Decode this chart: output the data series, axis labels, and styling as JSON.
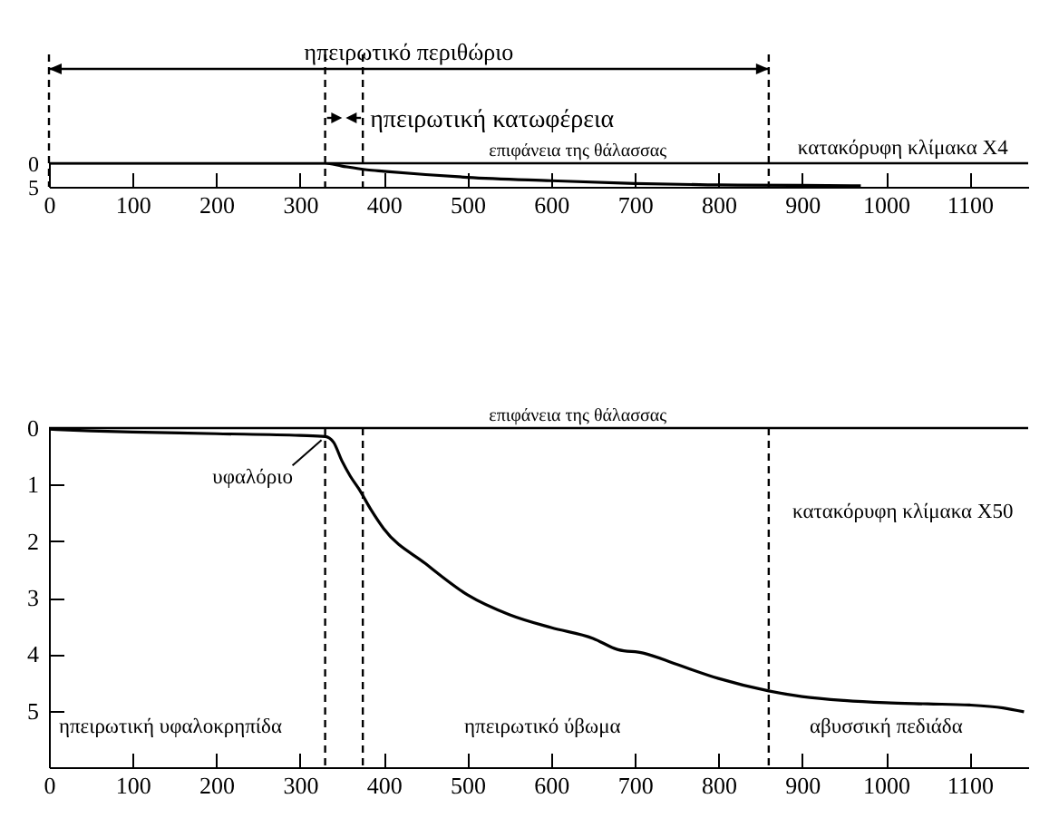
{
  "chart_data": [
    {
      "type": "line",
      "x": [
        0,
        100,
        200,
        300,
        330,
        350,
        380,
        400,
        450,
        500,
        600,
        700,
        800,
        900,
        970
      ],
      "values": [
        0,
        0,
        0,
        0,
        0,
        0.6,
        1.4,
        1.7,
        2.4,
        3.0,
        3.7,
        4.3,
        4.6,
        4.7,
        4.8
      ],
      "color": "#000000",
      "xlim": [
        0,
        1170
      ],
      "xticks": [
        0,
        100,
        200,
        300,
        400,
        500,
        600,
        700,
        800,
        900,
        1000,
        1100
      ],
      "ylim": [
        5,
        0
      ],
      "yticks": [
        0,
        5
      ],
      "ref_lines": [
        {
          "axis": "y",
          "value": 0,
          "label": "επιφάνεια της θάλασσας"
        },
        {
          "axis": "x",
          "value": 0,
          "line_style": "dashed"
        },
        {
          "axis": "x",
          "value": 330,
          "line_style": "dashed"
        },
        {
          "axis": "x",
          "value": 375,
          "line_style": "dashed"
        },
        {
          "axis": "x",
          "value": 860,
          "line_style": "dashed"
        }
      ],
      "annotations": [
        "ηπειρωτικό περιθώριο",
        "ηπειρωτική κατωφέρεια",
        "κατακόρυφη κλίμακα X4"
      ]
    },
    {
      "type": "line",
      "x": [
        0,
        50,
        100,
        200,
        300,
        330,
        340,
        350,
        360,
        370,
        385,
        400,
        450,
        500,
        550,
        600,
        650,
        680,
        710,
        750,
        800,
        860,
        900,
        950,
        1000,
        1050,
        1100,
        1140,
        1165
      ],
      "values": [
        0.02,
        0.05,
        0.07,
        0.1,
        0.13,
        0.15,
        0.25,
        0.58,
        0.85,
        1.07,
        1.45,
        1.78,
        2.4,
        2.95,
        3.3,
        3.53,
        3.72,
        3.92,
        3.98,
        4.18,
        4.43,
        4.65,
        4.75,
        4.82,
        4.86,
        4.88,
        4.9,
        4.95,
        5.02
      ],
      "color": "#000000",
      "xlim": [
        0,
        1170
      ],
      "xticks": [
        0,
        100,
        200,
        300,
        400,
        500,
        600,
        700,
        800,
        900,
        1000,
        1100
      ],
      "ylim": [
        6,
        0
      ],
      "yticks": [
        0,
        1,
        2,
        3,
        4,
        5
      ],
      "ref_lines": [
        {
          "axis": "y",
          "value": 0,
          "label": "επιφάνεια της θάλασσας"
        },
        {
          "axis": "x",
          "value": 330,
          "line_style": "dashed"
        },
        {
          "axis": "x",
          "value": 375,
          "line_style": "dashed"
        },
        {
          "axis": "x",
          "value": 860,
          "line_style": "dashed"
        }
      ],
      "annotations": [
        {
          "text": "υφαλόριο",
          "x": 330,
          "y": 0.15
        },
        "κατακόρυφη κλίμακα X50",
        "ηπειρωτική υφαλοκρηπίδα",
        "ηπειρωτικό ύβωμα",
        "αβυσσική πεδιάδα"
      ]
    }
  ]
}
